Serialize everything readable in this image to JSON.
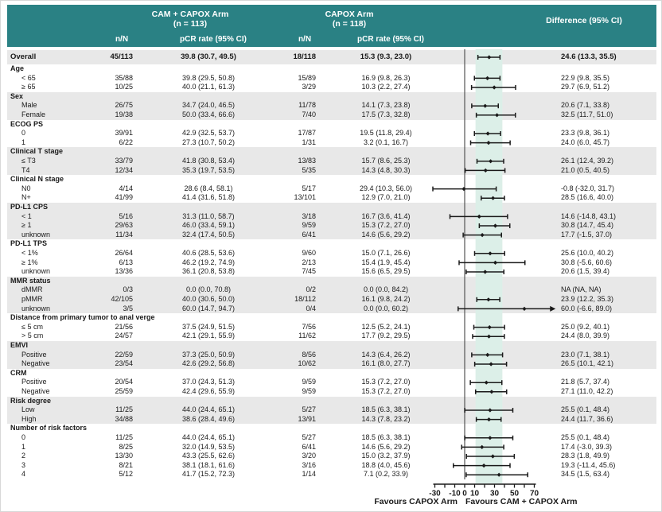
{
  "header": {
    "arm1": {
      "title": "CAM + CAPOX Arm",
      "n": "(n = 113)"
    },
    "arm2": {
      "title": "CAPOX Arm",
      "n": "(n = 118)"
    },
    "difference_title": "Difference (95% CI)",
    "columns": {
      "n_N": "n/N",
      "pcr": "pCR rate (95% CI)"
    }
  },
  "footer": {
    "favours_left": "Favours CAPOX Arm",
    "favours_right": "Favours CAM + CAPOX Arm"
  },
  "colors": {
    "header_bg": "#2a8184",
    "header_text": "#ffffff",
    "row_shade": "#e8e8e8",
    "band": "#dcefe8",
    "ci_line": "#1a1a1a",
    "zero_line": "#555555",
    "axis": "#1a1a1a"
  },
  "chart_data": {
    "type": "forest",
    "x_axis": {
      "range": [
        -30,
        70
      ],
      "tick_step": 10,
      "tick_labels": [
        -30,
        -10,
        0,
        10,
        30,
        50,
        70
      ]
    },
    "shaded_band": {
      "from": 13.3,
      "to": 35.5
    },
    "rows": [
      {
        "kind": "overall",
        "label": "Overall",
        "shade": true,
        "nN1": "45/113",
        "pcr1": "39.8 (30.7, 49.5)",
        "nN2": "18/118",
        "pcr2": "15.3 (9.3, 23.0)",
        "diff": "24.6 (13.3, 35.5)",
        "est": 24.6,
        "lo": 13.3,
        "hi": 35.5
      },
      {
        "kind": "group",
        "label": "Age",
        "shade": false
      },
      {
        "kind": "item",
        "label": "< 65",
        "shade": false,
        "nN1": "35/88",
        "pcr1": "39.8 (29.5, 50.8)",
        "nN2": "15/89",
        "pcr2": "16.9 (9.8, 26.3)",
        "diff": "22.9 (9.8, 35.5)",
        "est": 22.9,
        "lo": 9.8,
        "hi": 35.5
      },
      {
        "kind": "item",
        "label": "≥ 65",
        "shade": false,
        "nN1": "10/25",
        "pcr1": "40.0 (21.1, 61.3)",
        "nN2": "3/29",
        "pcr2": "10.3 (2.2, 27.4)",
        "diff": "29.7 (6.9, 51.2)",
        "est": 29.7,
        "lo": 6.9,
        "hi": 51.2
      },
      {
        "kind": "group",
        "label": "Sex",
        "shade": true
      },
      {
        "kind": "item",
        "label": "Male",
        "shade": true,
        "nN1": "26/75",
        "pcr1": "34.7 (24.0, 46.5)",
        "nN2": "11/78",
        "pcr2": "14.1 (7.3, 23.8)",
        "diff": "20.6 (7.1, 33.8)",
        "est": 20.6,
        "lo": 7.1,
        "hi": 33.8
      },
      {
        "kind": "item",
        "label": "Female",
        "shade": true,
        "nN1": "19/38",
        "pcr1": "50.0 (33.4, 66.6)",
        "nN2": "7/40",
        "pcr2": "17.5 (7.3, 32.8)",
        "diff": "32.5 (11.7, 51.0)",
        "est": 32.5,
        "lo": 11.7,
        "hi": 51.0
      },
      {
        "kind": "group",
        "label": "ECOG PS",
        "shade": false
      },
      {
        "kind": "item",
        "label": "0",
        "shade": false,
        "nN1": "39/91",
        "pcr1": "42.9 (32.5, 53.7)",
        "nN2": "17/87",
        "pcr2": "19.5 (11.8, 29.4)",
        "diff": "23.3 (9.8, 36.1)",
        "est": 23.3,
        "lo": 9.8,
        "hi": 36.1
      },
      {
        "kind": "item",
        "label": "1",
        "shade": false,
        "nN1": "6/22",
        "pcr1": "27.3 (10.7, 50.2)",
        "nN2": "1/31",
        "pcr2": "3.2 (0.1, 16.7)",
        "diff": "24.0 (6.0, 45.7)",
        "est": 24.0,
        "lo": 6.0,
        "hi": 45.7
      },
      {
        "kind": "group",
        "label": "Clinical T stage",
        "shade": true
      },
      {
        "kind": "item",
        "label": "≤ T3",
        "shade": true,
        "nN1": "33/79",
        "pcr1": "41.8 (30.8, 53.4)",
        "nN2": "13/83",
        "pcr2": "15.7 (8.6, 25.3)",
        "diff": "26.1 (12.4, 39.2)",
        "est": 26.1,
        "lo": 12.4,
        "hi": 39.2
      },
      {
        "kind": "item",
        "label": "T4",
        "shade": true,
        "nN1": "12/34",
        "pcr1": "35.3 (19.7, 53.5)",
        "nN2": "5/35",
        "pcr2": "14.3 (4.8, 30.3)",
        "diff": "21.0 (0.5, 40.5)",
        "est": 21.0,
        "lo": 0.5,
        "hi": 40.5
      },
      {
        "kind": "group",
        "label": "Clinical N stage",
        "shade": false
      },
      {
        "kind": "item",
        "label": "N0",
        "shade": false,
        "nN1": "4/14",
        "pcr1": "28.6 (8.4, 58.1)",
        "nN2": "5/17",
        "pcr2": "29.4 (10.3, 56.0)",
        "diff": "-0.8 (-32.0, 31.7)",
        "est": -0.8,
        "lo": -32.0,
        "hi": 31.7
      },
      {
        "kind": "item",
        "label": "N+",
        "shade": false,
        "nN1": "41/99",
        "pcr1": "41.4 (31.6, 51.8)",
        "nN2": "13/101",
        "pcr2": "12.9 (7.0, 21.0)",
        "diff": "28.5 (16.6, 40.0)",
        "est": 28.5,
        "lo": 16.6,
        "hi": 40.0
      },
      {
        "kind": "group",
        "label": "PD-L1 CPS",
        "shade": true
      },
      {
        "kind": "item",
        "label": "< 1",
        "shade": true,
        "nN1": "5/16",
        "pcr1": "31.3 (11.0, 58.7)",
        "nN2": "3/18",
        "pcr2": "16.7 (3.6, 41.4)",
        "diff": "14.6 (-14.8, 43.1)",
        "est": 14.6,
        "lo": -14.8,
        "hi": 43.1
      },
      {
        "kind": "item",
        "label": "≥ 1",
        "shade": true,
        "nN1": "29/63",
        "pcr1": "46.0 (33.4, 59.1)",
        "nN2": "9/59",
        "pcr2": "15.3 (7.2, 27.0)",
        "diff": "30.8 (14.7, 45.4)",
        "est": 30.8,
        "lo": 14.7,
        "hi": 45.4
      },
      {
        "kind": "item",
        "label": "unknown",
        "shade": true,
        "nN1": "11/34",
        "pcr1": "32.4 (17.4, 50.5)",
        "nN2": "6/41",
        "pcr2": "14.6 (5.6, 29.2)",
        "diff": "17.7 (-1.5, 37.0)",
        "est": 17.7,
        "lo": -1.5,
        "hi": 37.0
      },
      {
        "kind": "group",
        "label": "PD-L1 TPS",
        "shade": false
      },
      {
        "kind": "item",
        "label": "< 1%",
        "shade": false,
        "nN1": "26/64",
        "pcr1": "40.6 (28.5, 53.6)",
        "nN2": "9/60",
        "pcr2": "15.0 (7.1, 26.6)",
        "diff": "25.6 (10.0, 40.2)",
        "est": 25.6,
        "lo": 10.0,
        "hi": 40.2
      },
      {
        "kind": "item",
        "label": "≥ 1%",
        "shade": false,
        "nN1": "6/13",
        "pcr1": "46.2 (19.2, 74.9)",
        "nN2": "2/13",
        "pcr2": "15.4 (1.9, 45.4)",
        "diff": "30.8 (-5.6, 60.6)",
        "est": 30.8,
        "lo": -5.6,
        "hi": 60.6
      },
      {
        "kind": "item",
        "label": "unknown",
        "shade": false,
        "nN1": "13/36",
        "pcr1": "36.1 (20.8, 53.8)",
        "nN2": "7/45",
        "pcr2": "15.6 (6.5, 29.5)",
        "diff": "20.6 (1.5, 39.4)",
        "est": 20.6,
        "lo": 1.5,
        "hi": 39.4
      },
      {
        "kind": "group",
        "label": "MMR status",
        "shade": true
      },
      {
        "kind": "item",
        "label": "dMMR",
        "shade": true,
        "nN1": "0/3",
        "pcr1": "0.0 (0.0, 70.8)",
        "nN2": "0/2",
        "pcr2": "0.0 (0.0, 84.2)",
        "diff": "NA (NA, NA)",
        "est": null,
        "lo": null,
        "hi": null
      },
      {
        "kind": "item",
        "label": "pMMR",
        "shade": true,
        "nN1": "42/105",
        "pcr1": "40.0 (30.6, 50.0)",
        "nN2": "18/112",
        "pcr2": "16.1 (9.8, 24.2)",
        "diff": "23.9 (12.2, 35.3)",
        "est": 23.9,
        "lo": 12.2,
        "hi": 35.3
      },
      {
        "kind": "item",
        "label": "unknown",
        "shade": true,
        "nN1": "3/5",
        "pcr1": "60.0 (14.7, 94.7)",
        "nN2": "0/4",
        "pcr2": "0.0 (0.0, 60.2)",
        "diff": "60.0 (-6.6, 89.0)",
        "est": 60.0,
        "lo": -6.6,
        "hi": 89.0,
        "arrow_hi": true
      },
      {
        "kind": "group",
        "label": "Distance from primary tumor to anal verge",
        "shade": false
      },
      {
        "kind": "item",
        "label": "≤ 5 cm",
        "shade": false,
        "nN1": "21/56",
        "pcr1": "37.5 (24.9, 51.5)",
        "nN2": "7/56",
        "pcr2": "12.5 (5.2, 24.1)",
        "diff": "25.0 (9.2, 40.1)",
        "est": 25.0,
        "lo": 9.2,
        "hi": 40.1
      },
      {
        "kind": "item",
        "label": "> 5 cm",
        "shade": false,
        "nN1": "24/57",
        "pcr1": "42.1 (29.1, 55.9)",
        "nN2": "11/62",
        "pcr2": "17.7 (9.2, 29.5)",
        "diff": "24.4 (8.0, 39.9)",
        "est": 24.4,
        "lo": 8.0,
        "hi": 39.9
      },
      {
        "kind": "group",
        "label": "EMVI",
        "shade": true
      },
      {
        "kind": "item",
        "label": "Positive",
        "shade": true,
        "nN1": "22/59",
        "pcr1": "37.3 (25.0, 50.9)",
        "nN2": "8/56",
        "pcr2": "14.3 (6.4, 26.2)",
        "diff": "23.0 (7.1, 38.1)",
        "est": 23.0,
        "lo": 7.1,
        "hi": 38.1
      },
      {
        "kind": "item",
        "label": "Negative",
        "shade": true,
        "nN1": "23/54",
        "pcr1": "42.6 (29.2, 56.8)",
        "nN2": "10/62",
        "pcr2": "16.1 (8.0, 27.7)",
        "diff": "26.5 (10.1, 42.1)",
        "est": 26.5,
        "lo": 10.1,
        "hi": 42.1
      },
      {
        "kind": "group",
        "label": "CRM",
        "shade": false
      },
      {
        "kind": "item",
        "label": "Positive",
        "shade": false,
        "nN1": "20/54",
        "pcr1": "37.0 (24.3, 51.3)",
        "nN2": "9/59",
        "pcr2": "15.3 (7.2, 27.0)",
        "diff": "21.8 (5.7, 37.4)",
        "est": 21.8,
        "lo": 5.7,
        "hi": 37.4
      },
      {
        "kind": "item",
        "label": "Negative",
        "shade": false,
        "nN1": "25/59",
        "pcr1": "42.4 (29.6, 55.9)",
        "nN2": "9/59",
        "pcr2": "15.3 (7.2, 27.0)",
        "diff": "27.1 (11.0, 42.2)",
        "est": 27.1,
        "lo": 11.0,
        "hi": 42.2
      },
      {
        "kind": "group",
        "label": "Risk degree",
        "shade": true
      },
      {
        "kind": "item",
        "label": "Low",
        "shade": true,
        "nN1": "11/25",
        "pcr1": "44.0 (24.4, 65.1)",
        "nN2": "5/27",
        "pcr2": "18.5 (6.3, 38.1)",
        "diff": "25.5 (0.1, 48.4)",
        "est": 25.5,
        "lo": 0.1,
        "hi": 48.4
      },
      {
        "kind": "item",
        "label": "High",
        "shade": true,
        "nN1": "34/88",
        "pcr1": "38.6 (28.4, 49.6)",
        "nN2": "13/91",
        "pcr2": "14.3 (7.8, 23.2)",
        "diff": "24.4 (11.7, 36.6)",
        "est": 24.4,
        "lo": 11.7,
        "hi": 36.6
      },
      {
        "kind": "group",
        "label": "Number of risk factors",
        "shade": false
      },
      {
        "kind": "item",
        "label": "0",
        "shade": false,
        "nN1": "11/25",
        "pcr1": "44.0 (24.4, 65.1)",
        "nN2": "5/27",
        "pcr2": "18.5 (6.3, 38.1)",
        "diff": "25.5 (0.1, 48.4)",
        "est": 25.5,
        "lo": 0.1,
        "hi": 48.4
      },
      {
        "kind": "item",
        "label": "1",
        "shade": false,
        "nN1": "8/25",
        "pcr1": "32.0 (14.9, 53.5)",
        "nN2": "6/41",
        "pcr2": "14.6 (5.6, 29.2)",
        "diff": "17.4 (-3.0, 39.3)",
        "est": 17.4,
        "lo": -3.0,
        "hi": 39.3
      },
      {
        "kind": "item",
        "label": "2",
        "shade": false,
        "nN1": "13/30",
        "pcr1": "43.3 (25.5, 62.6)",
        "nN2": "3/20",
        "pcr2": "15.0 (3.2, 37.9)",
        "diff": "28.3 (1.8, 49.9)",
        "est": 28.3,
        "lo": 1.8,
        "hi": 49.9
      },
      {
        "kind": "item",
        "label": "3",
        "shade": false,
        "nN1": "8/21",
        "pcr1": "38.1 (18.1, 61.6)",
        "nN2": "3/16",
        "pcr2": "18.8 (4.0, 45.6)",
        "diff": "19.3 (-11.4, 45.6)",
        "est": 19.3,
        "lo": -11.4,
        "hi": 45.6
      },
      {
        "kind": "item",
        "label": "4",
        "shade": false,
        "nN1": "5/12",
        "pcr1": "41.7 (15.2, 72.3)",
        "nN2": "1/14",
        "pcr2": "7.1 (0.2, 33.9)",
        "diff": "34.5 (1.5, 63.4)",
        "est": 34.5,
        "lo": 1.5,
        "hi": 63.4
      }
    ]
  }
}
